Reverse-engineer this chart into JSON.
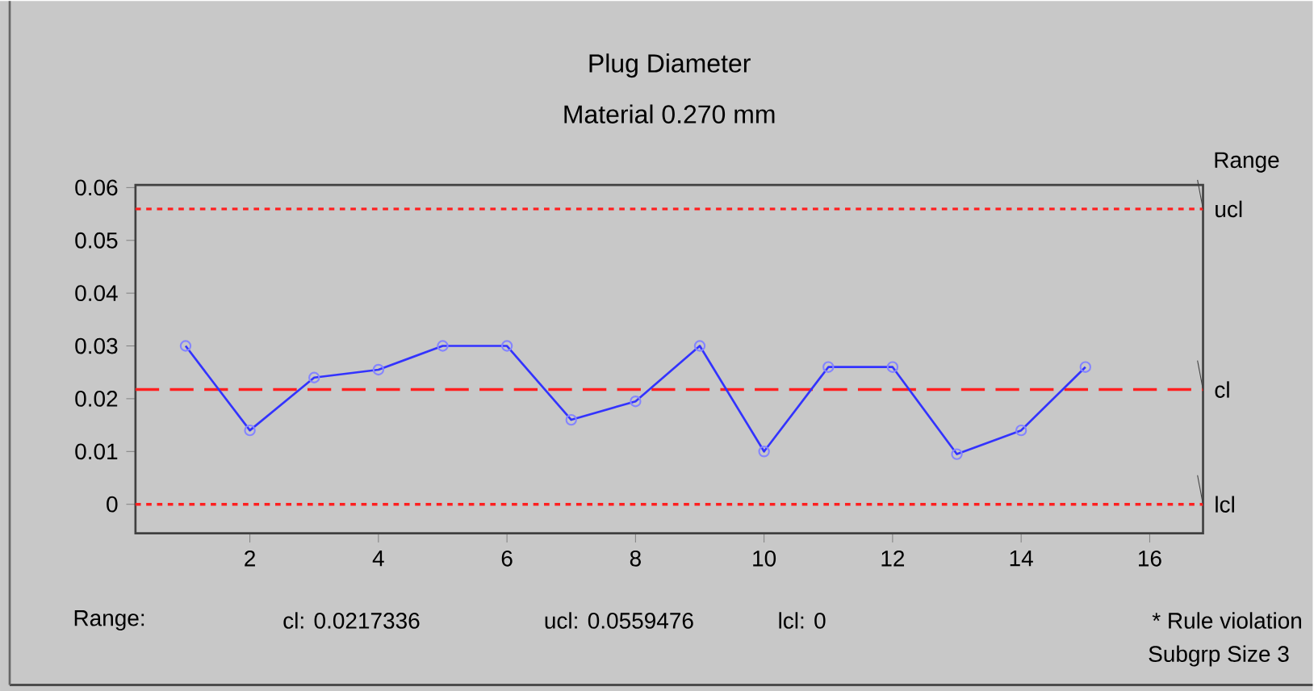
{
  "chart_data": {
    "type": "line",
    "title": "Plug Diameter",
    "subtitle": "Material 0.270 mm",
    "y2label": "Range",
    "x": [
      1,
      2,
      3,
      4,
      5,
      6,
      7,
      8,
      9,
      10,
      11,
      12,
      13,
      14,
      15
    ],
    "series": [
      {
        "color": "#3333ff",
        "values": [
          0.03,
          0.014,
          0.024,
          0.0255,
          0.03,
          0.03,
          0.016,
          0.0195,
          0.03,
          0.01,
          0.026,
          0.026,
          0.0095,
          0.014,
          0.026
        ]
      }
    ],
    "xlim": [
      0.22,
      16.83
    ],
    "ylim": [
      -0.0055,
      0.0605
    ],
    "xticks": [
      2,
      4,
      6,
      8,
      10,
      12,
      14,
      16
    ],
    "yticks": [
      0,
      0.01,
      0.02,
      0.03,
      0.04,
      0.05,
      0.06
    ],
    "ref_lines": [
      {
        "axis": "y",
        "value": 0.0559476,
        "label": "ucl",
        "color": "#ff2020",
        "line_style": "dotted"
      },
      {
        "axis": "y",
        "value": 0.0217336,
        "label": "cl",
        "color": "#ff2020",
        "line_style": "dashed"
      },
      {
        "axis": "y",
        "value": 0,
        "label": "lcl",
        "color": "#ff2020",
        "line_style": "dotted"
      }
    ],
    "annotations": [
      "Range:",
      "cl: 0.0217336",
      "ucl: 0.0559476",
      "lcl:  0",
      "* Rule violation",
      "Subgrp Size 3"
    ],
    "marker": "circle",
    "line_style": "solid",
    "grid": false
  }
}
